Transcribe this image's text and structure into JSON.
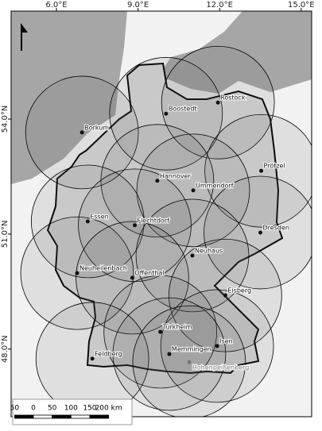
{
  "map": {
    "xticks": [
      {
        "value": 6,
        "label": "6.0°E"
      },
      {
        "value": 9,
        "label": "9.0°E"
      },
      {
        "value": 12,
        "label": "12.0°E"
      },
      {
        "value": 15,
        "label": "15.0°E"
      }
    ],
    "yticks": [
      {
        "value": 54,
        "label": "54.0°N"
      },
      {
        "value": 51,
        "label": "51.0°N"
      },
      {
        "value": 48,
        "label": "48.0°N"
      }
    ],
    "radius_km": 150,
    "stations": [
      {
        "name": "Borkum",
        "lon": 6.94,
        "lat": 53.65,
        "color": "#111111"
      },
      {
        "name": "Boostedt",
        "lon": 10.03,
        "lat": 54.14,
        "color": "#111111"
      },
      {
        "name": "Rostock",
        "lon": 11.94,
        "lat": 54.43,
        "color": "#111111"
      },
      {
        "name": "Prötzel",
        "lon": 13.53,
        "lat": 52.65,
        "color": "#111111"
      },
      {
        "name": "Hannover",
        "lon": 9.71,
        "lat": 52.39,
        "color": "#111111"
      },
      {
        "name": "Ummendorf",
        "lon": 11.03,
        "lat": 52.14,
        "color": "#111111"
      },
      {
        "name": "Essen",
        "lon": 7.15,
        "lat": 51.33,
        "color": "#111111"
      },
      {
        "name": "Flechtdorf",
        "lon": 8.88,
        "lat": 51.23,
        "color": "#111111"
      },
      {
        "name": "Dresden",
        "lon": 13.5,
        "lat": 51.04,
        "color": "#111111"
      },
      {
        "name": "Neuhaus",
        "lon": 11.0,
        "lat": 50.44,
        "color": "#111111"
      },
      {
        "name": "Neuheilenbach",
        "lon": 6.76,
        "lat": 49.98,
        "color": "#111111"
      },
      {
        "name": "Offenthal",
        "lon": 8.79,
        "lat": 49.86,
        "color": "#111111"
      },
      {
        "name": "Eisberg",
        "lon": 12.21,
        "lat": 49.4,
        "color": "#111111"
      },
      {
        "name": "Türkheim",
        "lon": 9.82,
        "lat": 48.45,
        "color": "#111111"
      },
      {
        "name": "Isen",
        "lon": 11.91,
        "lat": 48.08,
        "color": "#111111"
      },
      {
        "name": "Memmingen",
        "lon": 10.15,
        "lat": 47.87,
        "color": "#111111"
      },
      {
        "name": "Feldberg",
        "lon": 7.32,
        "lat": 47.75,
        "color": "#111111"
      },
      {
        "name": "Hohenpeißenberg",
        "lon": 10.88,
        "lat": 47.66,
        "color": "#777777"
      }
    ],
    "scale": {
      "ticks": [
        {
          "value": -50,
          "label": "50"
        },
        0,
        50,
        100,
        150,
        {
          "value": 200,
          "label": "200 km"
        }
      ]
    }
  }
}
